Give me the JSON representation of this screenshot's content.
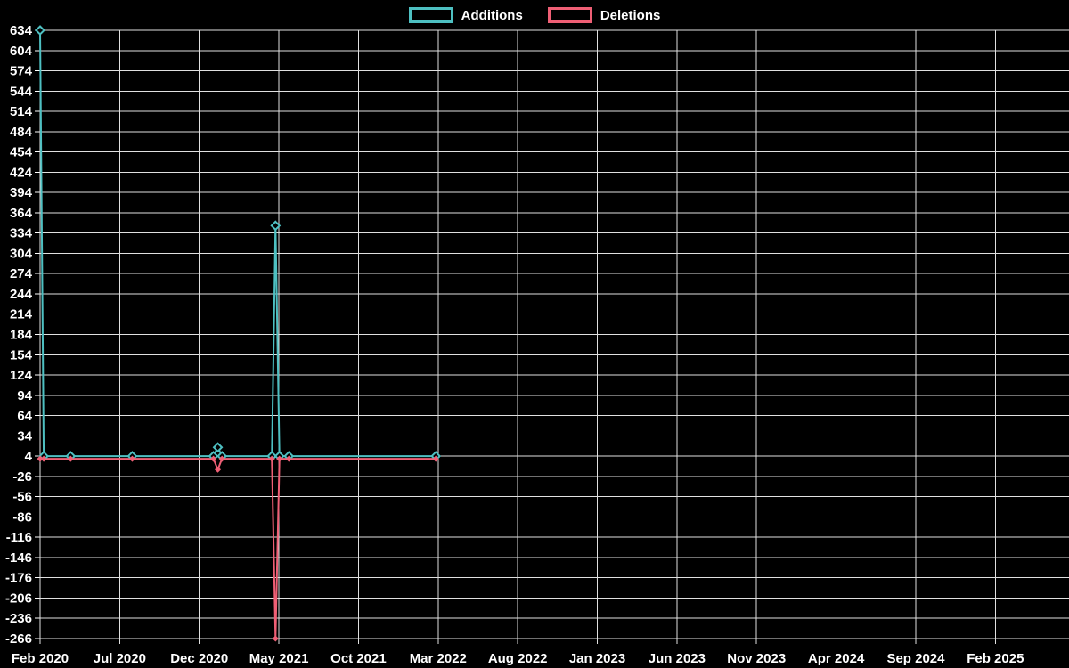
{
  "legend": {
    "items": [
      {
        "label": "Additions",
        "color": "#4ec0c2"
      },
      {
        "label": "Deletions",
        "color": "#ef5f75"
      }
    ]
  },
  "chart_data": {
    "type": "line",
    "title": "",
    "xlabel": "",
    "ylabel": "",
    "background": "#000000",
    "text_color": "#ffffff",
    "grid_color": "#e0e0e0",
    "grid": true,
    "legend_position": "top",
    "y_axis": {
      "min": -266,
      "max": 634,
      "step": 30
    },
    "x_tick_labels": [
      "Feb 2020",
      "Jul 2020",
      "Dec 2020",
      "May 2021",
      "Oct 2021",
      "Mar 2022",
      "Aug 2022",
      "Jan 2023",
      "Jun 2023",
      "Nov 2023",
      "Apr 2024",
      "Sep 2024",
      "Feb 2025"
    ],
    "x_range_months": 60,
    "series": [
      {
        "name": "Additions",
        "color": "#4ec0c2",
        "marker": "diamond-hollow",
        "points": [
          [
            "2020-02-01",
            634
          ],
          [
            "2020-02-08",
            4
          ],
          [
            "2020-03-29",
            4
          ],
          [
            "2020-07-25",
            4
          ],
          [
            "2020-12-28",
            4
          ],
          [
            "2021-01-06",
            17
          ],
          [
            "2021-01-14",
            4
          ],
          [
            "2021-04-18",
            4
          ],
          [
            "2021-04-25",
            345
          ],
          [
            "2021-05-02",
            4
          ],
          [
            "2021-05-20",
            4
          ],
          [
            "2022-02-27",
            4
          ]
        ]
      },
      {
        "name": "Deletions",
        "color": "#ef5f75",
        "marker": "diamond-filled",
        "points": [
          [
            "2020-02-01",
            0
          ],
          [
            "2020-02-08",
            0
          ],
          [
            "2020-03-29",
            0
          ],
          [
            "2020-07-25",
            0
          ],
          [
            "2020-12-28",
            0
          ],
          [
            "2021-01-06",
            -16
          ],
          [
            "2021-01-14",
            0
          ],
          [
            "2021-04-18",
            0
          ],
          [
            "2021-04-25",
            -266
          ],
          [
            "2021-05-02",
            0
          ],
          [
            "2021-05-20",
            0
          ],
          [
            "2022-02-27",
            0
          ]
        ]
      }
    ]
  }
}
